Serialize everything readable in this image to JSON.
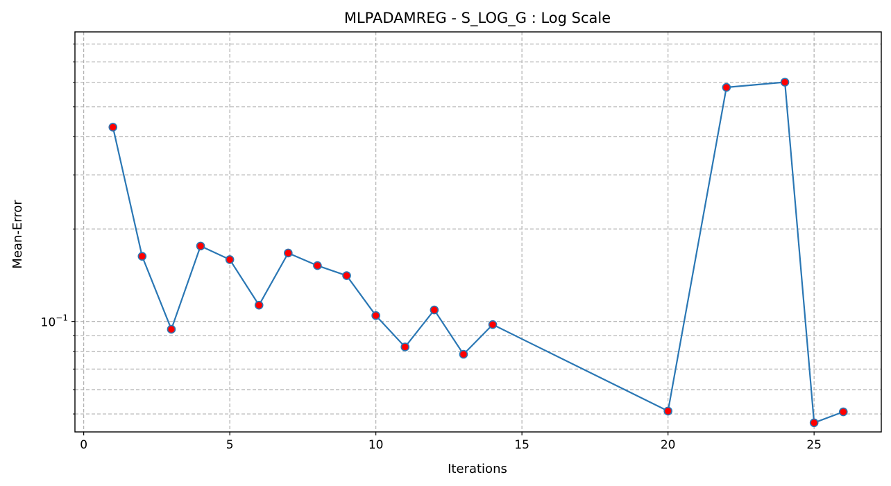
{
  "chart_data": {
    "type": "line",
    "title": "MLPADAMREG - S_LOG_G : Log Scale",
    "xlabel": "Iterations",
    "ylabel": "Mean-Error",
    "yscale": "log",
    "grid": true,
    "xlim": [
      -0.3,
      27.3
    ],
    "ylim": [
      0.0437,
      0.876
    ],
    "x_ticks": [
      0,
      5,
      10,
      15,
      20,
      25
    ],
    "y_major_ticks": [
      0.1
    ],
    "y_major_tick_labels": [
      {
        "base": "10",
        "exp": "−1"
      }
    ],
    "y_minor_ticks": [
      0.05,
      0.06,
      0.07,
      0.08,
      0.09,
      0.2,
      0.3,
      0.4,
      0.5,
      0.6,
      0.7,
      0.8
    ],
    "series": [
      {
        "x": [
          1,
          2,
          3,
          4,
          5,
          6,
          7,
          8,
          9,
          10,
          11,
          12,
          13,
          14,
          20,
          22,
          24,
          25,
          26
        ],
        "y": [
          0.429,
          0.163,
          0.0943,
          0.176,
          0.159,
          0.113,
          0.167,
          0.152,
          0.141,
          0.1045,
          0.0826,
          0.109,
          0.0782,
          0.0977,
          0.0511,
          0.578,
          0.601,
          0.0468,
          0.0508
        ],
        "color": "#2a77b4",
        "marker_color": "#ff0000"
      }
    ]
  }
}
